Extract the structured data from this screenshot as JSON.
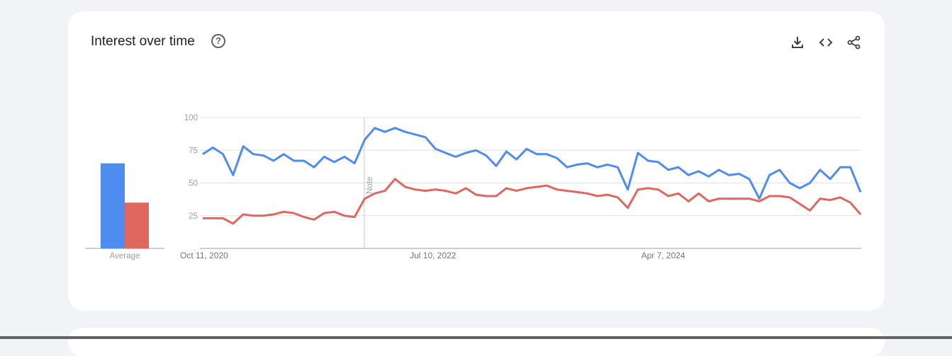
{
  "card": {
    "title": "Interest over time",
    "help_icon": "help-circle-icon",
    "actions": [
      {
        "name": "download-icon"
      },
      {
        "name": "embed-code-icon"
      },
      {
        "name": "share-icon"
      }
    ]
  },
  "chart_data": {
    "type": "line",
    "title": "Interest over time",
    "ylim": [
      0,
      100
    ],
    "yticks": [
      "100",
      "75",
      "50",
      "25"
    ],
    "xtick_labels": [
      {
        "label": "Oct 11, 2020",
        "date": "2020-10-11"
      },
      {
        "label": "Jul 10, 2022",
        "date": "2022-07-10"
      },
      {
        "label": "Apr 7, 2024",
        "date": "2024-04-07"
      }
    ],
    "grid": true,
    "note": {
      "label": "Note",
      "date": "2022-01-01"
    },
    "colors": [
      "#4e8cf0",
      "#e0675f"
    ],
    "average": {
      "label": "Average",
      "values": [
        65,
        35
      ]
    },
    "x": [
      "2020-10-11",
      "2020-11-08",
      "2020-12-06",
      "2021-01-03",
      "2021-01-31",
      "2021-02-28",
      "2021-03-28",
      "2021-04-25",
      "2021-05-23",
      "2021-06-20",
      "2021-07-18",
      "2021-08-15",
      "2021-09-12",
      "2021-10-10",
      "2021-11-07",
      "2021-12-05",
      "2022-01-02",
      "2022-01-30",
      "2022-02-27",
      "2022-03-27",
      "2022-04-24",
      "2022-05-22",
      "2022-06-19",
      "2022-07-17",
      "2022-08-14",
      "2022-09-11",
      "2022-10-09",
      "2022-11-06",
      "2022-12-04",
      "2023-01-01",
      "2023-01-29",
      "2023-02-26",
      "2023-03-26",
      "2023-04-23",
      "2023-05-21",
      "2023-06-18",
      "2023-07-16",
      "2023-08-13",
      "2023-09-10",
      "2023-10-08",
      "2023-11-05",
      "2023-12-03",
      "2023-12-31",
      "2024-01-28",
      "2024-02-25",
      "2024-03-24",
      "2024-04-21",
      "2024-05-19",
      "2024-06-16",
      "2024-07-14",
      "2024-08-11",
      "2024-09-08",
      "2024-10-06",
      "2024-11-03",
      "2024-12-01",
      "2024-12-29",
      "2025-01-26",
      "2025-02-23",
      "2025-03-23",
      "2025-04-20",
      "2025-05-18",
      "2025-06-15",
      "2025-07-13",
      "2025-08-10",
      "2025-09-07",
      "2025-10-05"
    ],
    "series": [
      {
        "values": [
          72,
          77,
          72,
          56,
          78,
          72,
          71,
          67,
          72,
          67,
          67,
          62,
          70,
          66,
          70,
          65,
          83,
          92,
          89,
          92,
          89,
          87,
          85,
          76,
          73,
          70,
          73,
          75,
          71,
          63,
          74,
          68,
          76,
          72,
          72,
          69,
          62,
          64,
          65,
          62,
          64,
          62,
          45,
          73,
          67,
          66,
          60,
          62,
          56,
          59,
          55,
          60,
          56,
          57,
          53,
          38,
          56,
          60,
          50,
          46,
          50,
          60,
          53,
          62,
          62,
          43
        ]
      },
      {
        "values": [
          23,
          23,
          23,
          19,
          26,
          25,
          25,
          26,
          28,
          27,
          24,
          22,
          27,
          28,
          25,
          24,
          38,
          42,
          44,
          53,
          47,
          45,
          44,
          45,
          44,
          42,
          46,
          41,
          40,
          40,
          46,
          44,
          46,
          47,
          48,
          45,
          44,
          43,
          42,
          40,
          41,
          39,
          31,
          45,
          46,
          45,
          40,
          42,
          36,
          42,
          36,
          38,
          38,
          38,
          38,
          36,
          40,
          40,
          39,
          34,
          29,
          38,
          37,
          39,
          35,
          26
        ]
      }
    ]
  }
}
